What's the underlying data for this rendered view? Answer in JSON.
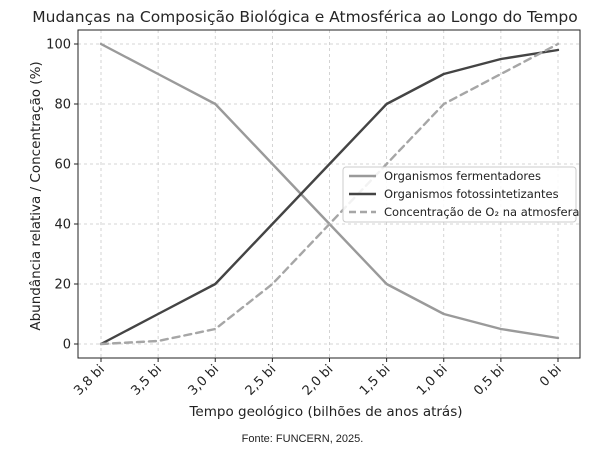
{
  "chart_data": {
    "type": "line",
    "title": "Mudanças na Composição Biológica e Atmosférica ao Longo do Tempo",
    "xlabel": "Tempo geológico (bilhões de anos atrás)",
    "ylabel": "Abundância relativa / Concentração (%)",
    "categories": [
      "3,8 bi",
      "3,5 bi",
      "3,0 bi",
      "2,5 bi",
      "2,0 bi",
      "1,5 bi",
      "1,0 bi",
      "0,5 bi",
      "0 bi"
    ],
    "ylim": [
      0,
      100
    ],
    "yticks": [
      0,
      20,
      40,
      60,
      80,
      100
    ],
    "grid": true,
    "legend_position": "center-right",
    "series": [
      {
        "name": "Organismos fermentadores",
        "values": [
          100,
          90,
          80,
          60,
          40,
          20,
          10,
          5,
          2
        ],
        "color": "#9a9a9a",
        "style": "solid"
      },
      {
        "name": "Organismos fotossintetizantes",
        "values": [
          0,
          10,
          20,
          40,
          60,
          80,
          90,
          95,
          98
        ],
        "color": "#444444",
        "style": "solid"
      },
      {
        "name": "Concentração de O₂ na atmosfera",
        "values": [
          0,
          1,
          5,
          20,
          40,
          60,
          80,
          90,
          100
        ],
        "color": "#a6a6a6",
        "style": "dashed"
      }
    ]
  },
  "source": "Fonte: FUNCERN, 2025."
}
